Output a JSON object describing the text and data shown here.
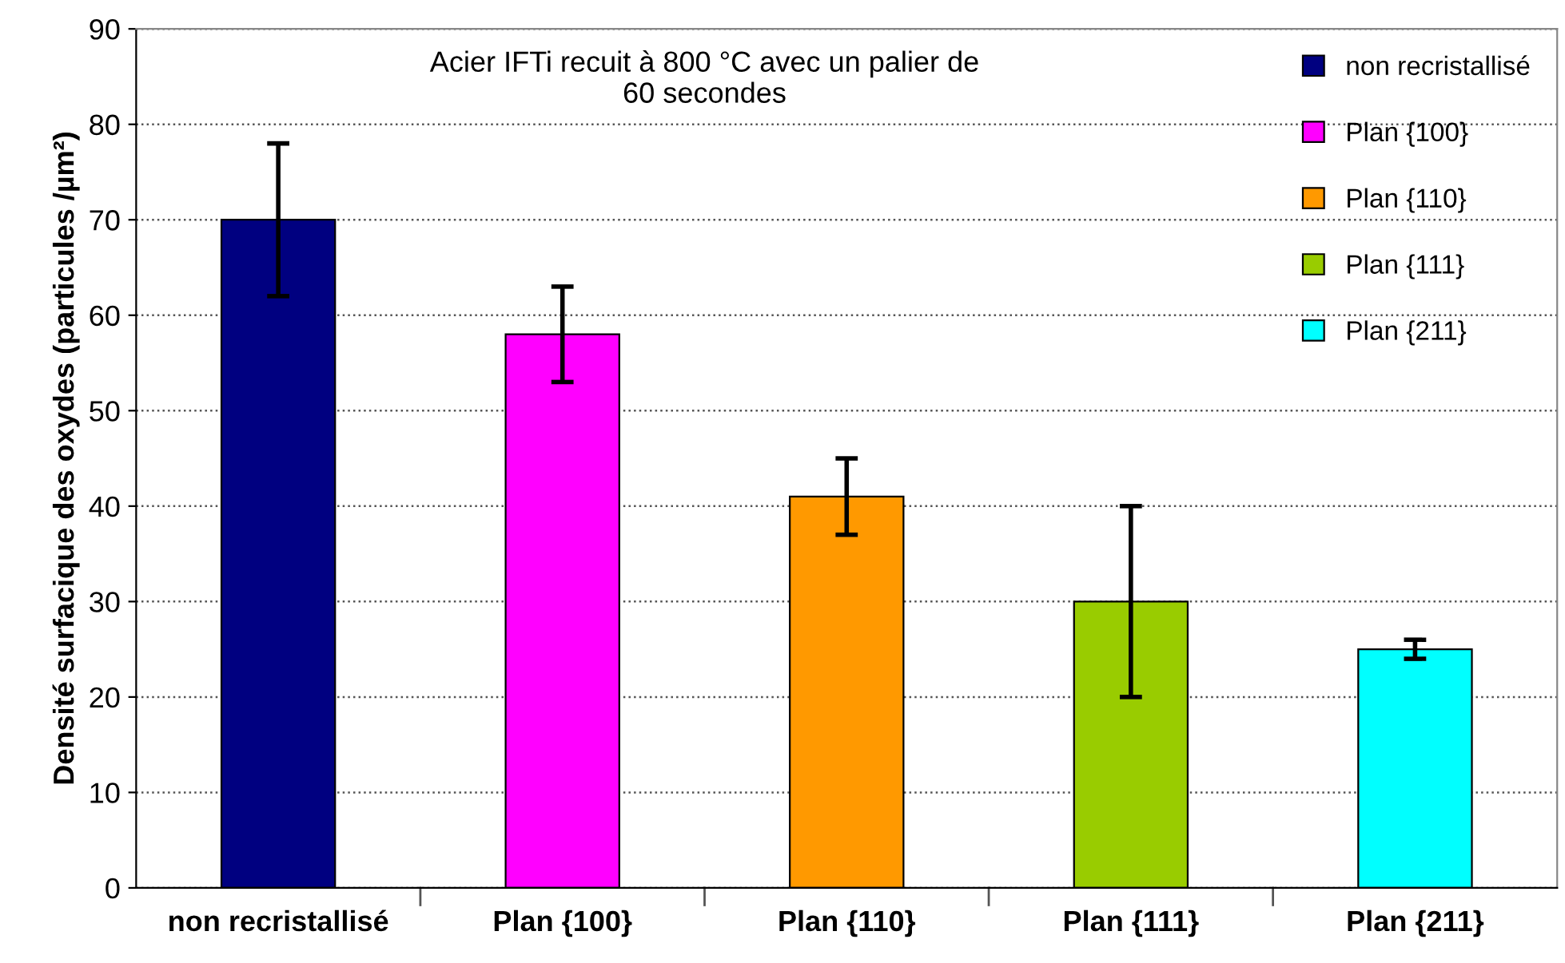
{
  "chart_data": {
    "type": "bar",
    "title": "Acier IFTi recuit à 800 °C avec un palier de\n60 secondes",
    "ylabel": "Densité surfacique des oxydes (particules /µm²)",
    "categories": [
      "non recristallisé",
      "Plan {100}",
      "Plan {110}",
      "Plan {111}",
      "Plan {211}"
    ],
    "series": [
      {
        "name": "non recristallisé",
        "color": "#000080",
        "values": [
          70,
          null,
          null,
          null,
          null
        ],
        "errors": [
          8,
          null,
          null,
          null,
          null
        ]
      },
      {
        "name": "Plan {100}",
        "color": "#ff00ff",
        "values": [
          null,
          58,
          null,
          null,
          null
        ],
        "errors": [
          null,
          5,
          null,
          null,
          null
        ]
      },
      {
        "name": "Plan {110}",
        "color": "#ff9900",
        "values": [
          null,
          null,
          41,
          null,
          null
        ],
        "errors": [
          null,
          null,
          4,
          null,
          null
        ]
      },
      {
        "name": "Plan {111}",
        "color": "#99cc00",
        "values": [
          null,
          null,
          null,
          30,
          null
        ],
        "errors": [
          null,
          null,
          null,
          10,
          null
        ]
      },
      {
        "name": "Plan {211}",
        "color": "#00ffff",
        "values": [
          null,
          null,
          null,
          null,
          25
        ],
        "errors": [
          null,
          null,
          null,
          null,
          1
        ]
      }
    ],
    "ylim": [
      0,
      90
    ],
    "yticks": [
      0,
      10,
      20,
      30,
      40,
      50,
      60,
      70,
      80,
      90
    ],
    "grid": "y",
    "legend": "top right"
  }
}
